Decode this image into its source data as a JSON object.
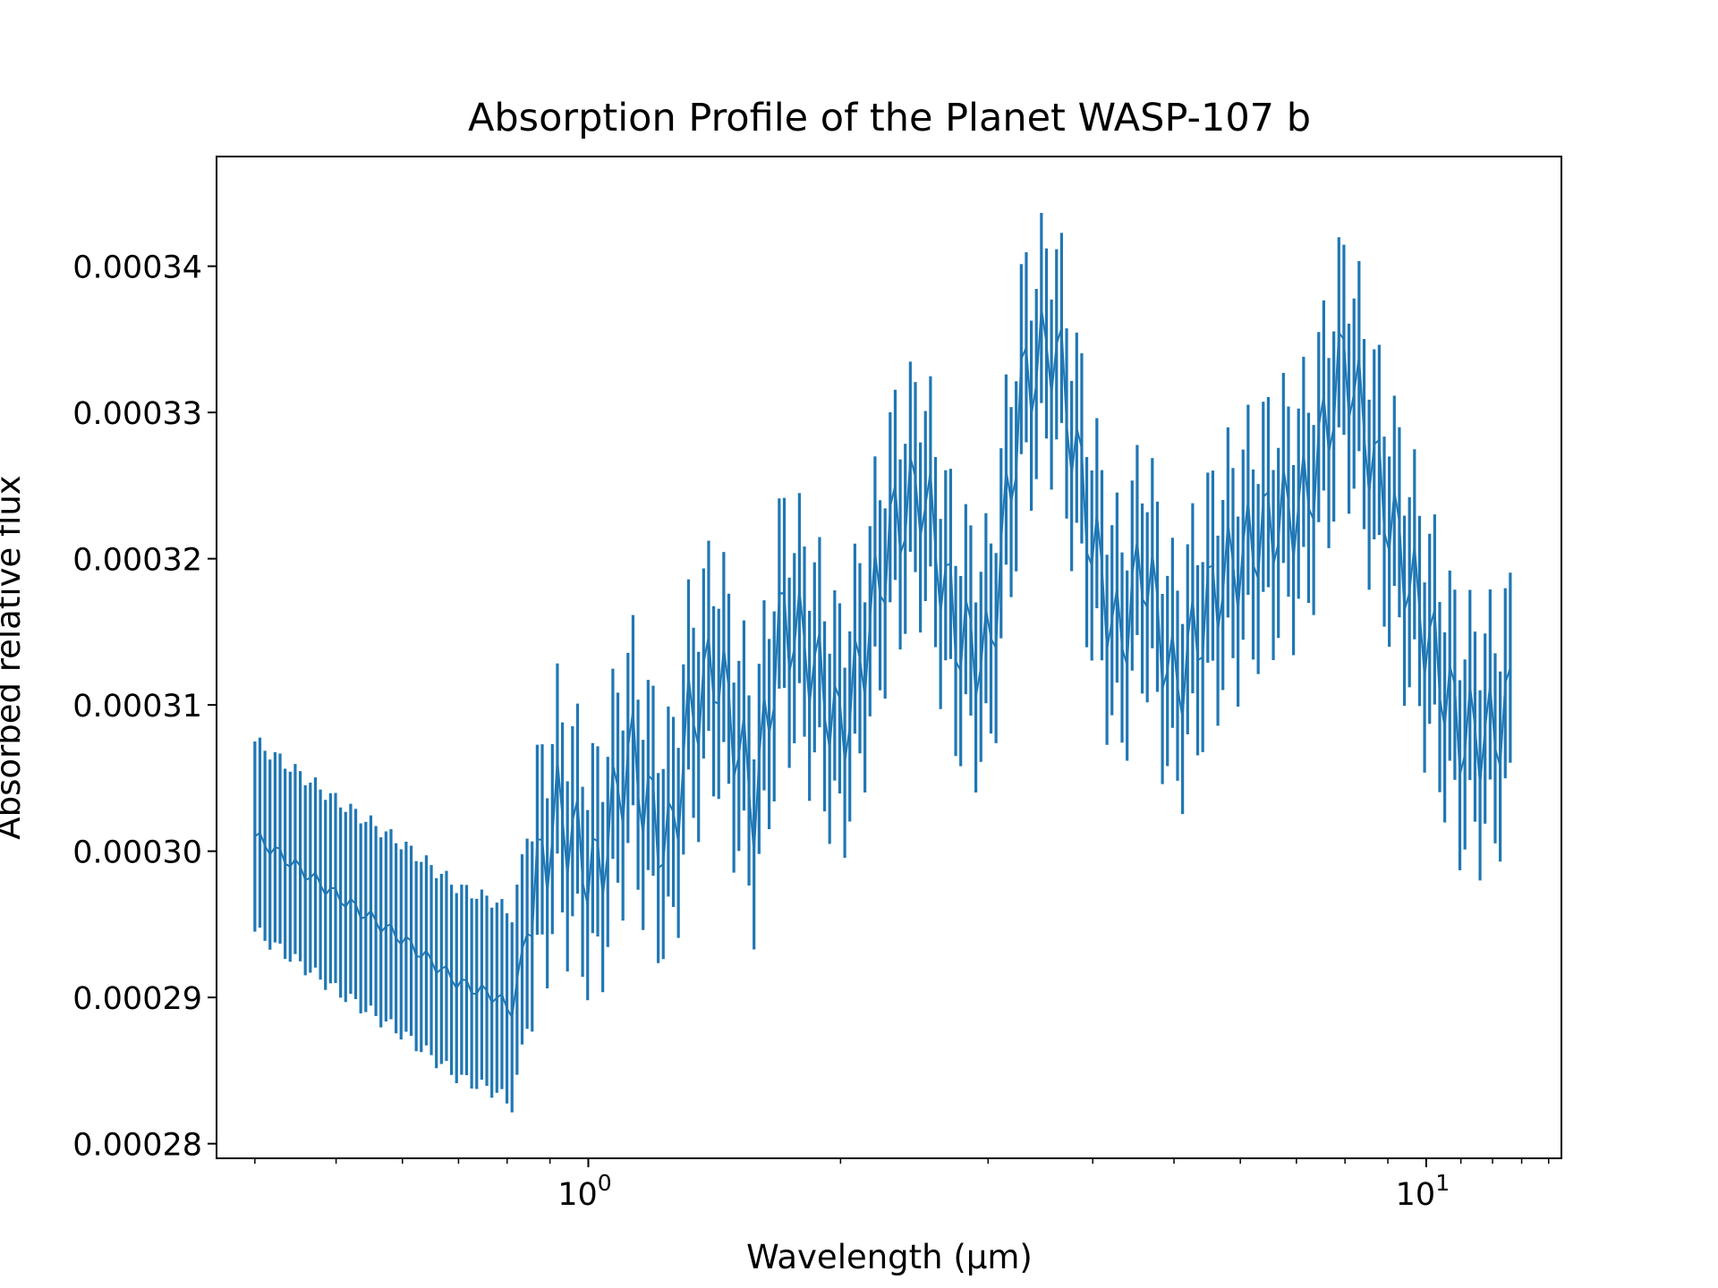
{
  "chart_data": {
    "type": "errorbar",
    "title": "Absorption Profile of the Planet WASP-107 b",
    "xlabel": "Wavelength (μm)",
    "ylabel": "Absorbed relative flux",
    "xscale": "log",
    "xlim": [
      0.36,
      14.5
    ],
    "ylim": [
      0.000279,
      0.0003475
    ],
    "grid": false,
    "color": "#1f77b4",
    "x_ticks": [
      {
        "value": 1,
        "base": "10",
        "exp": "0"
      },
      {
        "value": 10,
        "base": "10",
        "exp": "1"
      }
    ],
    "y_ticks": [
      {
        "value": 0.00028,
        "label": "0.00028"
      },
      {
        "value": 0.00029,
        "label": "0.00029"
      },
      {
        "value": 0.0003,
        "label": "0.00030"
      },
      {
        "value": 0.00031,
        "label": "0.00031"
      },
      {
        "value": 0.00032,
        "label": "0.00032"
      },
      {
        "value": 0.00033,
        "label": "0.00033"
      },
      {
        "value": 0.00034,
        "label": "0.00034"
      }
    ],
    "series": [
      {
        "x_range": [
          0.4,
          12.6
        ],
        "n_points": 250,
        "anchors": [
          {
            "x": 0.4,
            "y": 0.000301
          },
          {
            "x": 0.5,
            "y": 0.000297
          },
          {
            "x": 0.6,
            "y": 0.000294
          },
          {
            "x": 0.7,
            "y": 0.000291
          },
          {
            "x": 0.78,
            "y": 0.00029
          },
          {
            "x": 0.81,
            "y": 0.000289
          },
          {
            "x": 0.86,
            "y": 0.000297
          },
          {
            "x": 0.92,
            "y": 0.000303
          },
          {
            "x": 1.02,
            "y": 0.000298
          },
          {
            "x": 1.12,
            "y": 0.000307
          },
          {
            "x": 1.18,
            "y": 0.000303
          },
          {
            "x": 1.25,
            "y": 0.0003
          },
          {
            "x": 1.32,
            "y": 0.000309
          },
          {
            "x": 1.42,
            "y": 0.000313
          },
          {
            "x": 1.58,
            "y": 0.000303
          },
          {
            "x": 1.7,
            "y": 0.000316
          },
          {
            "x": 1.82,
            "y": 0.000314
          },
          {
            "x": 2.0,
            "y": 0.000308
          },
          {
            "x": 2.1,
            "y": 0.000312
          },
          {
            "x": 2.3,
            "y": 0.000322
          },
          {
            "x": 2.5,
            "y": 0.000325
          },
          {
            "x": 2.75,
            "y": 0.000315
          },
          {
            "x": 3.0,
            "y": 0.000313
          },
          {
            "x": 3.3,
            "y": 0.000332
          },
          {
            "x": 3.6,
            "y": 0.000335
          },
          {
            "x": 4.0,
            "y": 0.000321
          },
          {
            "x": 4.3,
            "y": 0.000314
          },
          {
            "x": 4.6,
            "y": 0.00032
          },
          {
            "x": 5.0,
            "y": 0.000311
          },
          {
            "x": 5.6,
            "y": 0.000318
          },
          {
            "x": 6.4,
            "y": 0.000322
          },
          {
            "x": 7.2,
            "y": 0.000324
          },
          {
            "x": 8.0,
            "y": 0.000334
          },
          {
            "x": 8.8,
            "y": 0.000325
          },
          {
            "x": 10.0,
            "y": 0.000315
          },
          {
            "x": 11.0,
            "y": 0.000308
          },
          {
            "x": 12.0,
            "y": 0.000308
          },
          {
            "x": 12.6,
            "y": 0.00031
          }
        ],
        "error": 6.5e-06,
        "wiggle_amplitude": 3.5e-06
      }
    ]
  }
}
